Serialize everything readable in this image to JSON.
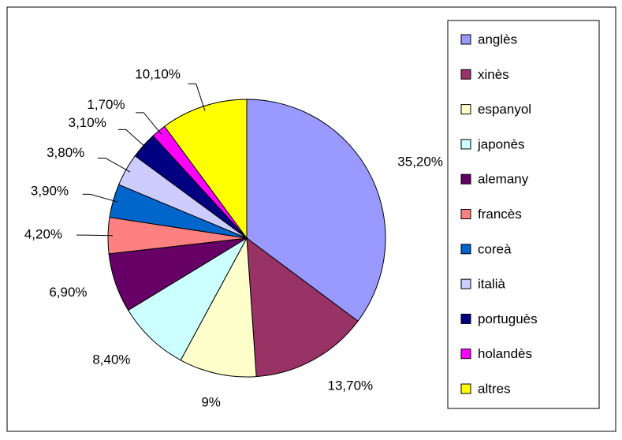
{
  "chart_data": {
    "type": "pie",
    "categories": [
      "anglès",
      "xinès",
      "espanyol",
      "japonès",
      "alemany",
      "francès",
      "coreà",
      "italià",
      "portuguès",
      "holandès",
      "altres"
    ],
    "values": [
      35.2,
      13.7,
      9,
      8.4,
      6.9,
      4.2,
      3.9,
      3.8,
      3.1,
      1.7,
      10.1
    ],
    "value_labels": [
      "35,20%",
      "13,70%",
      "9%",
      "8,40%",
      "6,90%",
      "4,20%",
      "3,90%",
      "3,80%",
      "3,10%",
      "1,70%",
      "10,10%"
    ],
    "colors": [
      "#9999ff",
      "#993366",
      "#ffffcc",
      "#ccffff",
      "#660066",
      "#ff8080",
      "#0066cc",
      "#ccccff",
      "#000080",
      "#ff00ff",
      "#ffff00"
    ],
    "legend": "right"
  }
}
